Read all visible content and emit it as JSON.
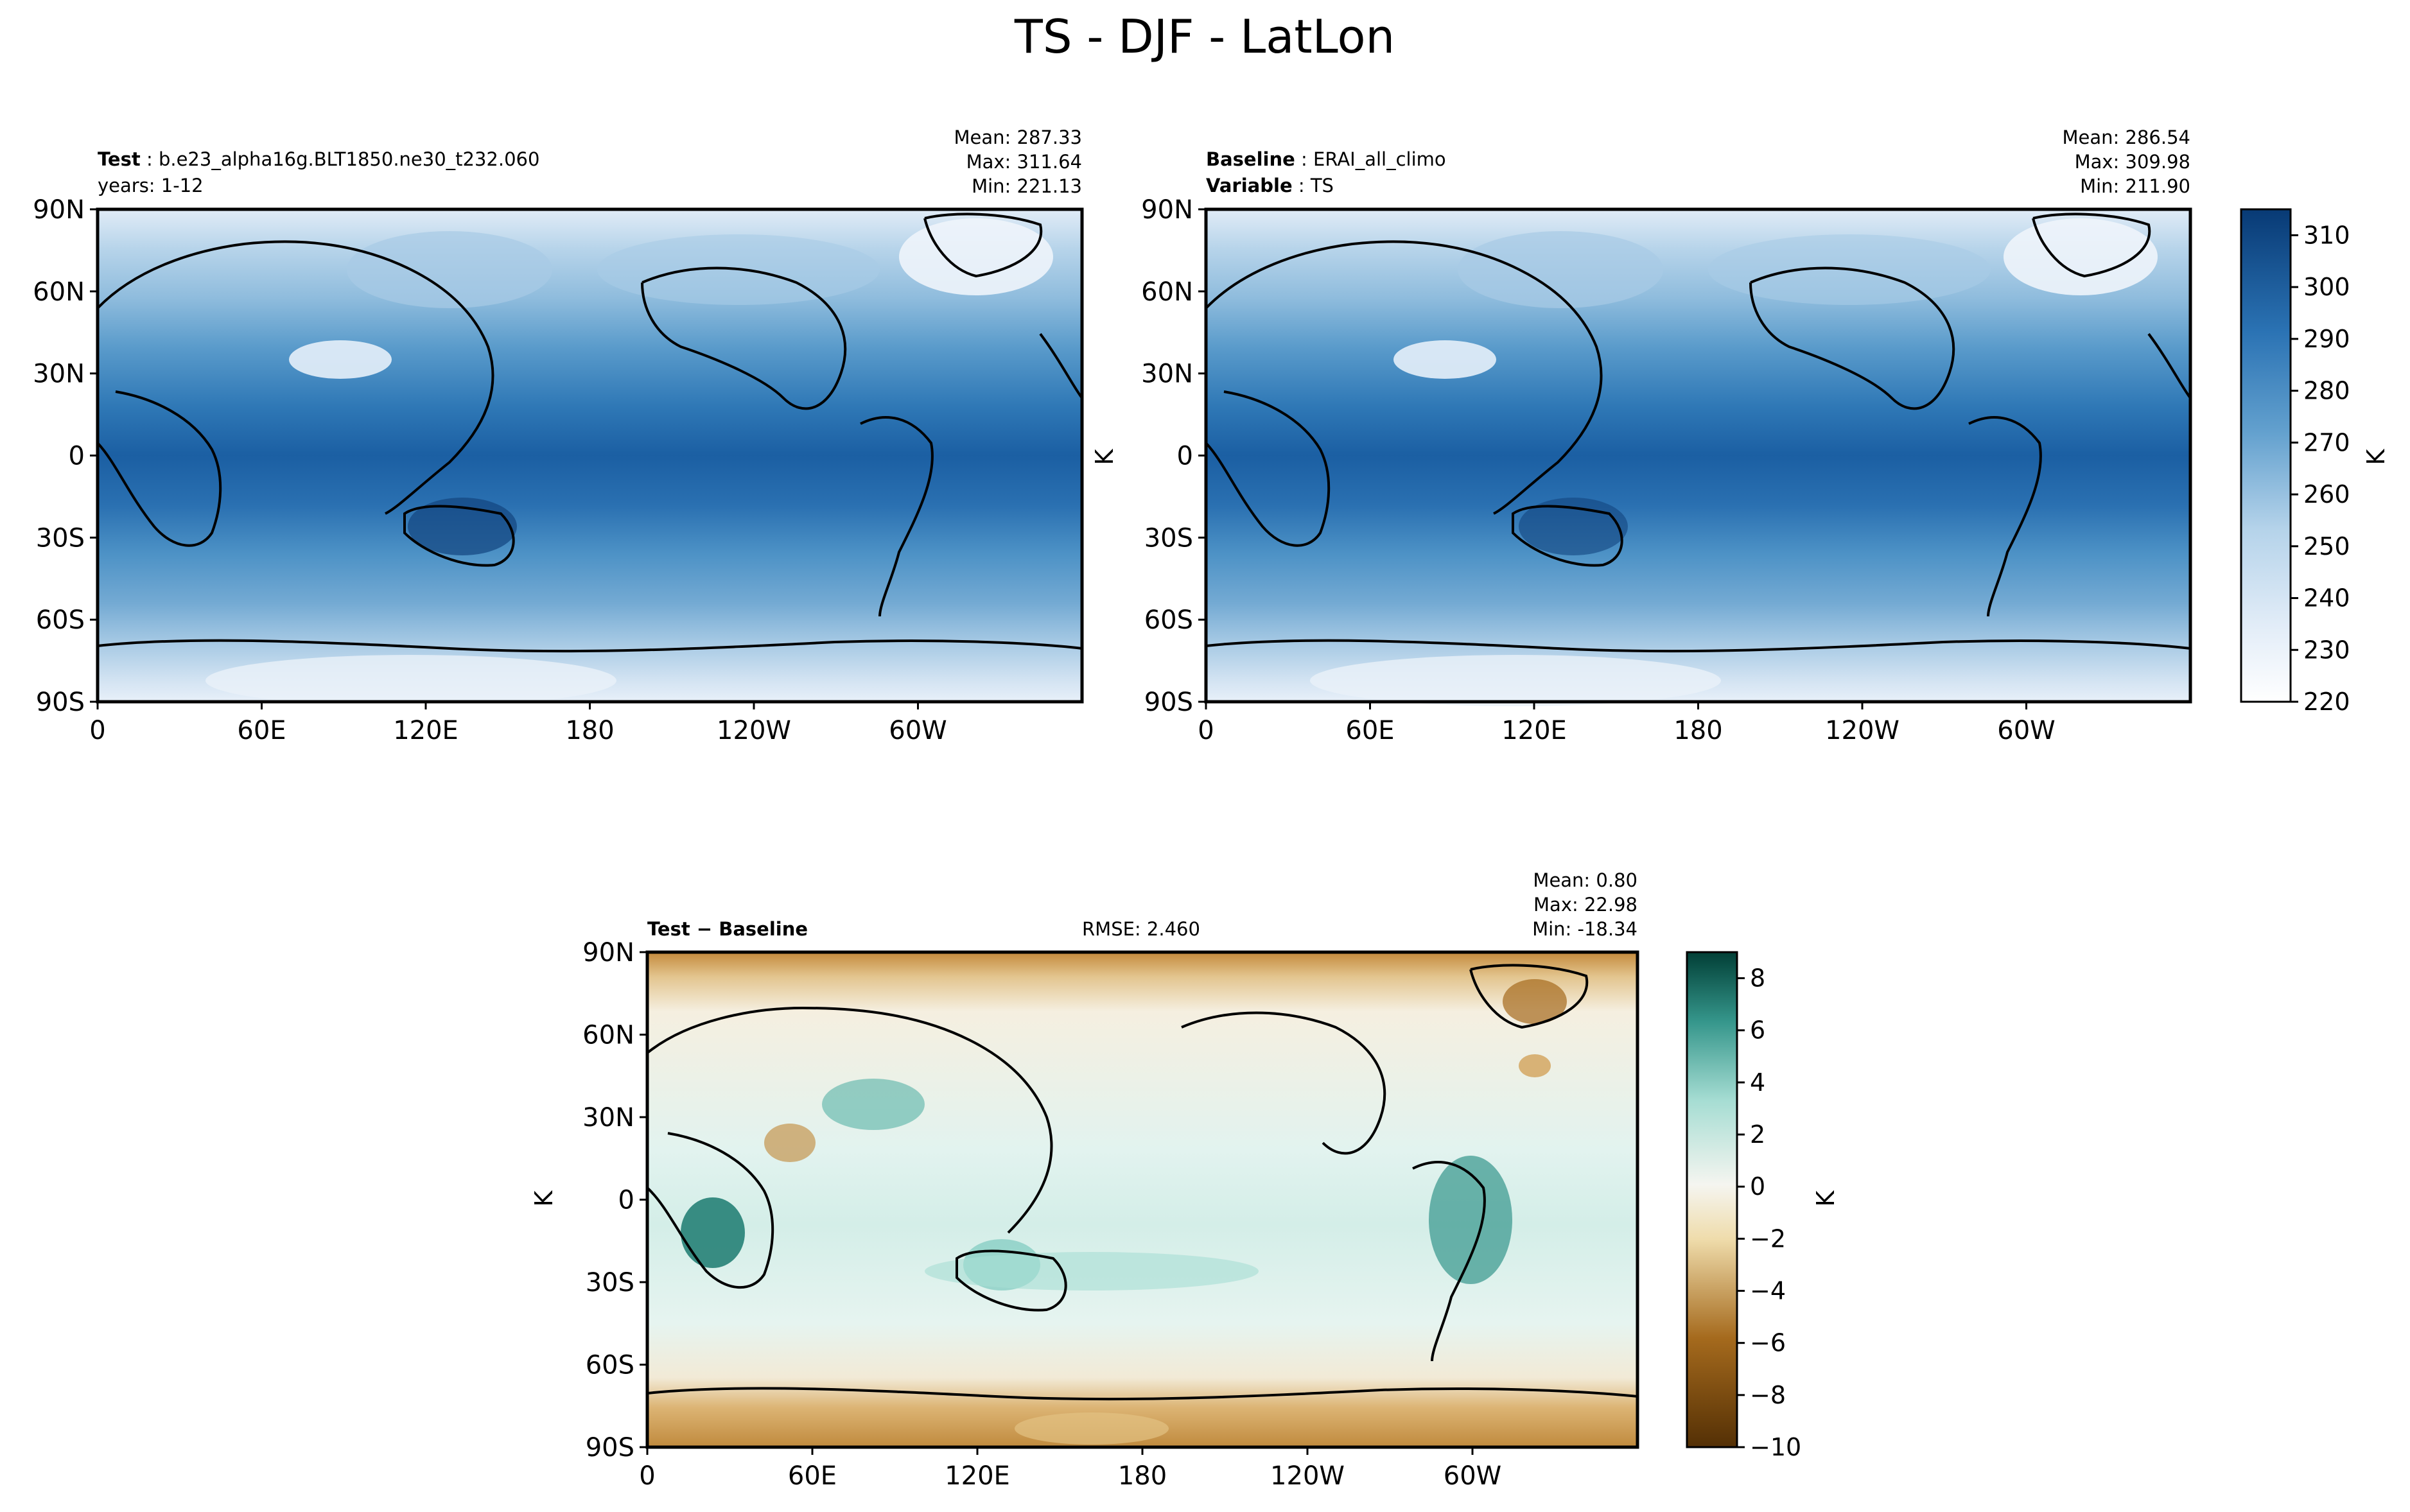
{
  "figure": {
    "title": "TS - DJF - LatLon"
  },
  "panels": {
    "test": {
      "left_label_1": "Test",
      "left_value_1": "b.e23_alpha16g.BLT1850.ne30_t232.060",
      "left_line_2": "years: 1-12",
      "stats": {
        "mean": "Mean: 287.33",
        "max": "Max: 311.64",
        "min": "Min: 221.13"
      }
    },
    "baseline": {
      "left_label_1": "Baseline",
      "left_value_1": "ERAI_all_climo",
      "left_label_2": "Variable",
      "left_value_2": "TS",
      "ylabel": "K",
      "stats": {
        "mean": "Mean: 286.54",
        "max": "Max: 309.98",
        "min": "Min: 211.90"
      }
    },
    "diff": {
      "left_label": "Test − Baseline",
      "center_label": "RMSE: 2.460",
      "ylabel": "K",
      "stats": {
        "mean": "Mean:  0.80",
        "max": "Max: 22.98",
        "min": "Min: -18.34"
      }
    }
  },
  "colorbars": {
    "ts": {
      "label": "K",
      "ticks": [
        "220",
        "230",
        "240",
        "250",
        "260",
        "270",
        "280",
        "290",
        "300",
        "310"
      ]
    },
    "diff": {
      "label": "K",
      "ticks": [
        "−10",
        "−8",
        "−6",
        "−4",
        "−2",
        "0",
        "2",
        "4",
        "6",
        "8"
      ]
    }
  },
  "chart_data": [
    {
      "type": "heatmap",
      "name": "Test",
      "variable": "TS",
      "season": "DJF",
      "projection": "LatLon",
      "xlabel": "",
      "ylabel": "",
      "x_ticks": [
        "0",
        "60E",
        "120E",
        "180",
        "120W",
        "60W"
      ],
      "y_ticks": [
        "90N",
        "60N",
        "30N",
        "0",
        "30S",
        "60S",
        "90S"
      ],
      "xlim": [
        0,
        360
      ],
      "ylim": [
        -90,
        90
      ],
      "stats": {
        "mean": 287.33,
        "max": 311.64,
        "min": 221.13
      },
      "colorbar": {
        "label": "K",
        "range": [
          220,
          315
        ],
        "colormap": "PuBu"
      }
    },
    {
      "type": "heatmap",
      "name": "Baseline",
      "variable": "TS",
      "xlabel": "",
      "ylabel": "K",
      "x_ticks": [
        "0",
        "60E",
        "120E",
        "180",
        "120W",
        "60W"
      ],
      "y_ticks": [
        "90N",
        "60N",
        "30N",
        "0",
        "30S",
        "60S",
        "90S"
      ],
      "xlim": [
        0,
        360
      ],
      "ylim": [
        -90,
        90
      ],
      "stats": {
        "mean": 286.54,
        "max": 309.98,
        "min": 211.9
      },
      "colorbar": {
        "label": "K",
        "range": [
          220,
          315
        ],
        "colormap": "PuBu"
      }
    },
    {
      "type": "heatmap",
      "name": "Test − Baseline",
      "xlabel": "",
      "ylabel": "K",
      "x_ticks": [
        "0",
        "60E",
        "120E",
        "180",
        "120W",
        "60W"
      ],
      "y_ticks": [
        "90N",
        "60N",
        "30N",
        "0",
        "30S",
        "60S",
        "90S"
      ],
      "xlim": [
        0,
        360
      ],
      "ylim": [
        -90,
        90
      ],
      "rmse": 2.46,
      "stats": {
        "mean": 0.8,
        "max": 22.98,
        "min": -18.34
      },
      "colorbar": {
        "label": "K",
        "range": [
          -10,
          9
        ],
        "colormap": "BrBG"
      }
    }
  ],
  "colors": {
    "ts_scale": [
      "#ffffff",
      "#eef3fa",
      "#e3edf8",
      "#d5e5f4",
      "#c6dcef",
      "#b5d3ea",
      "#a2c8e4",
      "#8ebcdd",
      "#78aed6",
      "#62a0ce",
      "#4c91c6",
      "#3a82be",
      "#2b73b4",
      "#1e63a7",
      "#135597",
      "#0b4586",
      "#083a75"
    ],
    "diff_scale": [
      "#543005",
      "#6e3f0a",
      "#8a5210",
      "#a56a1d",
      "#bf8634",
      "#d2a35a",
      "#e2c283",
      "#efdcab",
      "#f6ead0",
      "#f5f5f0",
      "#e3f2ef",
      "#c8eae3",
      "#a6ddd3",
      "#7ecbbf",
      "#57b3a6",
      "#35968b",
      "#1b7a70",
      "#0a5f56",
      "#013f36"
    ]
  }
}
